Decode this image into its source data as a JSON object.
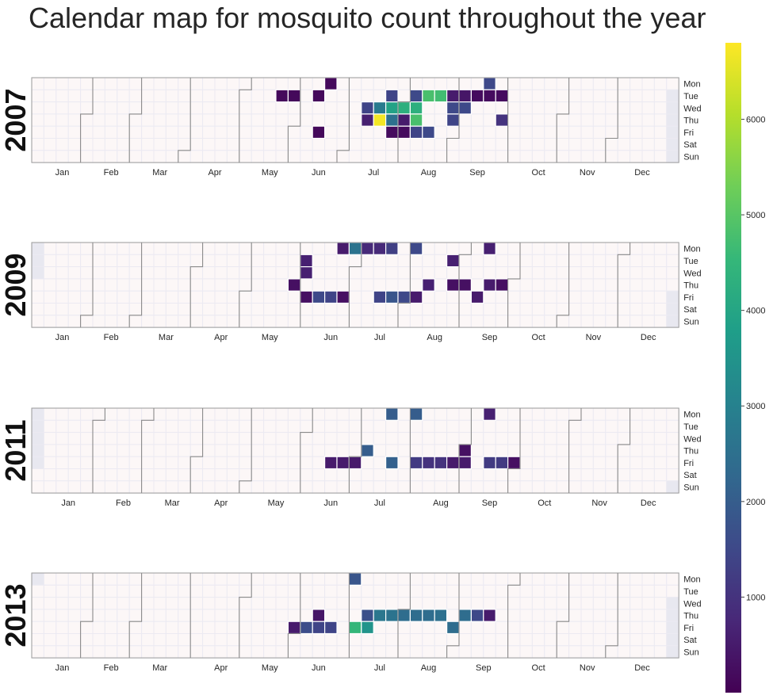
{
  "chart_data": {
    "type": "heatmap",
    "title": "Calendar map for mosquito count throughout the year",
    "subtype": "calendar",
    "weekday_labels": [
      "Mon",
      "Tue",
      "Wed",
      "Thu",
      "Fri",
      "Sat",
      "Sun"
    ],
    "month_labels": [
      "Jan",
      "Feb",
      "Mar",
      "Apr",
      "May",
      "Jun",
      "Jul",
      "Aug",
      "Sep",
      "Oct",
      "Nov",
      "Dec"
    ],
    "colormap": "viridis",
    "colorbar": {
      "min": 0,
      "max": 6800,
      "ticks": [
        1000,
        2000,
        3000,
        4000,
        5000,
        6000
      ]
    },
    "empty_cell_color": "#fcf7f7",
    "outside_year_color": "#e8e8f0",
    "years": [
      {
        "year": "2007",
        "first_weekday": 0,
        "values": [
          [
            "2007-05-22",
            150
          ],
          [
            "2007-05-29",
            150
          ],
          [
            "2007-06-12",
            150
          ],
          [
            "2007-06-15",
            150
          ],
          [
            "2007-06-18",
            150
          ],
          [
            "2007-07-11",
            1400
          ],
          [
            "2007-07-12",
            600
          ],
          [
            "2007-07-18",
            2800
          ],
          [
            "2007-07-19",
            6700
          ],
          [
            "2007-07-24",
            1400
          ],
          [
            "2007-07-25",
            3900
          ],
          [
            "2007-07-26",
            2500
          ],
          [
            "2007-07-27",
            200
          ],
          [
            "2007-08-01",
            4300
          ],
          [
            "2007-08-02",
            500
          ],
          [
            "2007-08-03",
            200
          ],
          [
            "2007-08-07",
            1500
          ],
          [
            "2007-08-08",
            4300
          ],
          [
            "2007-08-09",
            4800
          ],
          [
            "2007-08-10",
            1400
          ],
          [
            "2007-08-14",
            4800
          ],
          [
            "2007-08-17",
            1500
          ],
          [
            "2007-08-21",
            4700
          ],
          [
            "2007-08-28",
            500
          ],
          [
            "2007-08-29",
            1500
          ],
          [
            "2007-08-30",
            1400
          ],
          [
            "2007-09-04",
            400
          ],
          [
            "2007-09-05",
            1500
          ],
          [
            "2007-09-11",
            200
          ],
          [
            "2007-09-17",
            1500
          ],
          [
            "2007-09-18",
            200
          ],
          [
            "2007-09-25",
            200
          ],
          [
            "2007-09-27",
            1000
          ]
        ]
      },
      {
        "year": "2009",
        "first_weekday": 3,
        "values": [
          [
            "2009-05-28",
            300
          ],
          [
            "2009-06-02",
            600
          ],
          [
            "2009-06-03",
            600
          ],
          [
            "2009-06-05",
            300
          ],
          [
            "2009-06-12",
            1500
          ],
          [
            "2009-06-19",
            1400
          ],
          [
            "2009-06-22",
            500
          ],
          [
            "2009-06-26",
            300
          ],
          [
            "2009-06-29",
            2600
          ],
          [
            "2009-07-06",
            800
          ],
          [
            "2009-07-13",
            800
          ],
          [
            "2009-07-17",
            1400
          ],
          [
            "2009-07-20",
            1300
          ],
          [
            "2009-07-24",
            1800
          ],
          [
            "2009-07-31",
            1500
          ],
          [
            "2009-08-03",
            1500
          ],
          [
            "2009-08-07",
            500
          ],
          [
            "2009-08-13",
            600
          ],
          [
            "2009-08-25",
            600
          ],
          [
            "2009-08-27",
            300
          ],
          [
            "2009-09-03",
            300
          ],
          [
            "2009-09-11",
            500
          ],
          [
            "2009-09-14",
            600
          ],
          [
            "2009-09-17",
            500
          ],
          [
            "2009-09-24",
            300
          ]
        ]
      },
      {
        "year": "2011",
        "first_weekday": 5,
        "values": [
          [
            "2011-06-17",
            500
          ],
          [
            "2011-06-24",
            500
          ],
          [
            "2011-07-01",
            500
          ],
          [
            "2011-07-07",
            2000
          ],
          [
            "2011-07-18",
            2000
          ],
          [
            "2011-07-22",
            2100
          ],
          [
            "2011-08-01",
            2000
          ],
          [
            "2011-08-05",
            1200
          ],
          [
            "2011-08-12",
            1000
          ],
          [
            "2011-08-19",
            1000
          ],
          [
            "2011-08-26",
            500
          ],
          [
            "2011-09-01",
            300
          ],
          [
            "2011-09-02",
            500
          ],
          [
            "2011-09-12",
            600
          ],
          [
            "2011-09-16",
            1200
          ],
          [
            "2011-09-23",
            1200
          ],
          [
            "2011-09-30",
            300
          ]
        ]
      },
      {
        "year": "2013",
        "first_weekday": 1,
        "values": [
          [
            "2013-05-31",
            500
          ],
          [
            "2013-06-07",
            1600
          ],
          [
            "2013-06-13",
            400
          ],
          [
            "2013-06-14",
            1400
          ],
          [
            "2013-06-21",
            1400
          ],
          [
            "2013-07-01",
            1800
          ],
          [
            "2013-07-05",
            4500
          ],
          [
            "2013-07-11",
            1700
          ],
          [
            "2013-07-12",
            3500
          ],
          [
            "2013-07-18",
            2700
          ],
          [
            "2013-07-25",
            2600
          ],
          [
            "2013-08-01",
            2400
          ],
          [
            "2013-08-08",
            2400
          ],
          [
            "2013-08-15",
            2400
          ],
          [
            "2013-08-22",
            2500
          ],
          [
            "2013-08-30",
            2400
          ],
          [
            "2013-09-05",
            2400
          ],
          [
            "2013-09-12",
            1500
          ],
          [
            "2013-09-19",
            500
          ]
        ]
      }
    ]
  }
}
